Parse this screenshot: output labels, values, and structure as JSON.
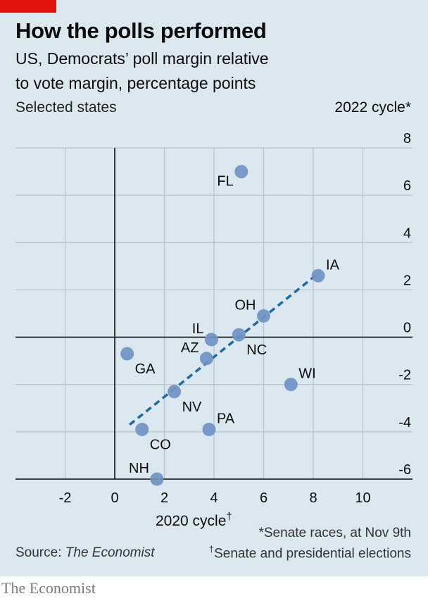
{
  "header": {
    "title": "How the polls performed",
    "subtitle_line1": "US, Democrats’ poll margin relative",
    "subtitle_line2": "to vote margin, percentage points",
    "subtitle_line3": "Selected states"
  },
  "footer": {
    "note1": "*Senate races, at Nov 9th",
    "note2_mark": "†",
    "note2": "Senate and presidential elections",
    "source_label": "Source: ",
    "source_name": "The Economist",
    "brand": "The Economist"
  },
  "colors": {
    "background": "#dce8f0",
    "accent_red": "#e3120b",
    "point": "#6f93c4",
    "trendline": "#1f6aa5",
    "gridline": "#b5c2cc",
    "axis": "#0c0c0c"
  },
  "chart_data": {
    "type": "scatter",
    "xlabel": "2020 cycle",
    "xlabel_mark": "†",
    "ylabel": "2022 cycle*",
    "xlim": [
      -4,
      12
    ],
    "ylim": [
      -6,
      8
    ],
    "xticks": [
      -2,
      0,
      2,
      4,
      6,
      8,
      10
    ],
    "xtick_labels": [
      "-2",
      "0",
      "2",
      "4",
      "6",
      "8",
      "10"
    ],
    "yticks": [
      -6,
      -4,
      -2,
      0,
      2,
      4,
      6,
      8
    ],
    "ytick_labels": [
      "-6",
      "-4",
      "-2",
      "0",
      "2",
      "4",
      "6",
      "8"
    ],
    "grid": true,
    "points": [
      {
        "label": "FL",
        "x": 5.1,
        "y": 7.0,
        "label_side": "left-below"
      },
      {
        "label": "IA",
        "x": 8.2,
        "y": 2.6,
        "label_side": "right-above"
      },
      {
        "label": "OH",
        "x": 6.0,
        "y": 0.9,
        "label_side": "left-above"
      },
      {
        "label": "IL",
        "x": 3.9,
        "y": -0.1,
        "label_side": "left-above"
      },
      {
        "label": "NC",
        "x": 5.0,
        "y": 0.1,
        "label_side": "right-below"
      },
      {
        "label": "AZ",
        "x": 3.7,
        "y": -0.9,
        "label_side": "left-above"
      },
      {
        "label": "GA",
        "x": 0.5,
        "y": -0.7,
        "label_side": "right-below"
      },
      {
        "label": "WI",
        "x": 7.1,
        "y": -2.0,
        "label_side": "right-above"
      },
      {
        "label": "NV",
        "x": 2.4,
        "y": -2.3,
        "label_side": "right-below"
      },
      {
        "label": "PA",
        "x": 3.8,
        "y": -3.9,
        "label_side": "right-above"
      },
      {
        "label": "CO",
        "x": 1.1,
        "y": -3.9,
        "label_side": "right-below"
      },
      {
        "label": "NH",
        "x": 1.7,
        "y": -6.0,
        "label_side": "left-above"
      }
    ],
    "trendline": {
      "x": [
        0.6,
        8.2
      ],
      "y": [
        -3.7,
        2.7
      ]
    }
  }
}
